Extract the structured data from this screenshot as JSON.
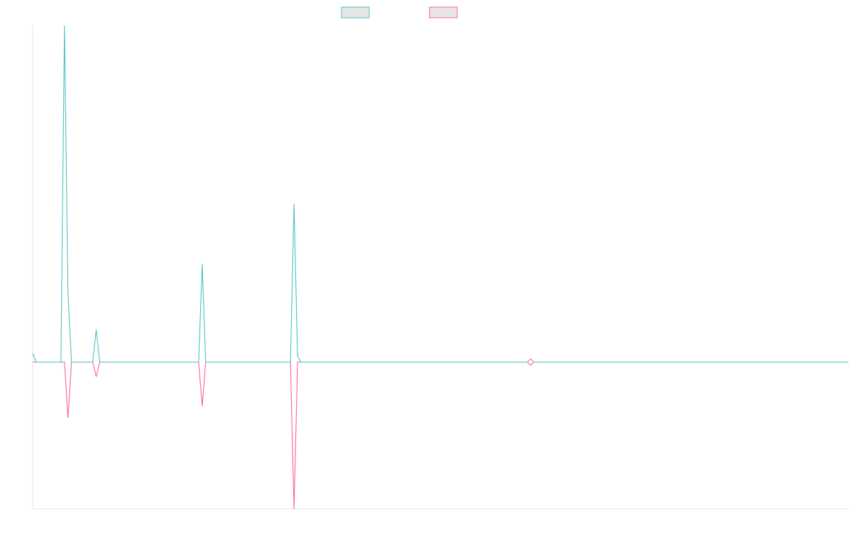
{
  "colors": {
    "series1": "#4bc0c0",
    "series2": "#ff6384",
    "legend_fill": "#e6e6e6",
    "axis": "#e5e5e5"
  },
  "chart_data": {
    "type": "line",
    "title": "",
    "xlabel": "",
    "ylabel": "",
    "grid": false,
    "legend": "top-center",
    "ylim": [
      -100,
      230
    ],
    "series": [
      {
        "name": "",
        "color": "#4bc0c0",
        "points": [
          [
            0,
            6
          ],
          [
            1,
            0
          ],
          [
            8,
            0
          ],
          [
            9,
            230
          ],
          [
            10,
            47
          ],
          [
            11,
            0
          ],
          [
            17,
            0
          ],
          [
            18,
            22
          ],
          [
            19,
            0
          ],
          [
            47,
            0
          ],
          [
            48,
            67
          ],
          [
            49,
            0
          ],
          [
            73,
            0
          ],
          [
            74,
            108
          ],
          [
            75,
            4
          ],
          [
            76,
            0
          ],
          [
            140,
            0
          ],
          [
            141,
            0
          ],
          [
            142,
            0
          ],
          [
            231,
            0
          ]
        ]
      },
      {
        "name": "",
        "color": "#ff6384",
        "points": [
          [
            0,
            0
          ],
          [
            1,
            0
          ],
          [
            8,
            0
          ],
          [
            9,
            0
          ],
          [
            10,
            -38
          ],
          [
            11,
            0
          ],
          [
            17,
            0
          ],
          [
            18,
            -10
          ],
          [
            19,
            0
          ],
          [
            47,
            0
          ],
          [
            48,
            -30
          ],
          [
            49,
            0
          ],
          [
            73,
            0
          ],
          [
            74,
            -100
          ],
          [
            75,
            0
          ],
          [
            76,
            0
          ],
          [
            140,
            0
          ],
          [
            141,
            0
          ],
          [
            142,
            0
          ],
          [
            231,
            0
          ]
        ]
      }
    ],
    "markers": [
      {
        "series": 1,
        "x": 141,
        "y": 0,
        "shape": "diamond"
      }
    ]
  }
}
